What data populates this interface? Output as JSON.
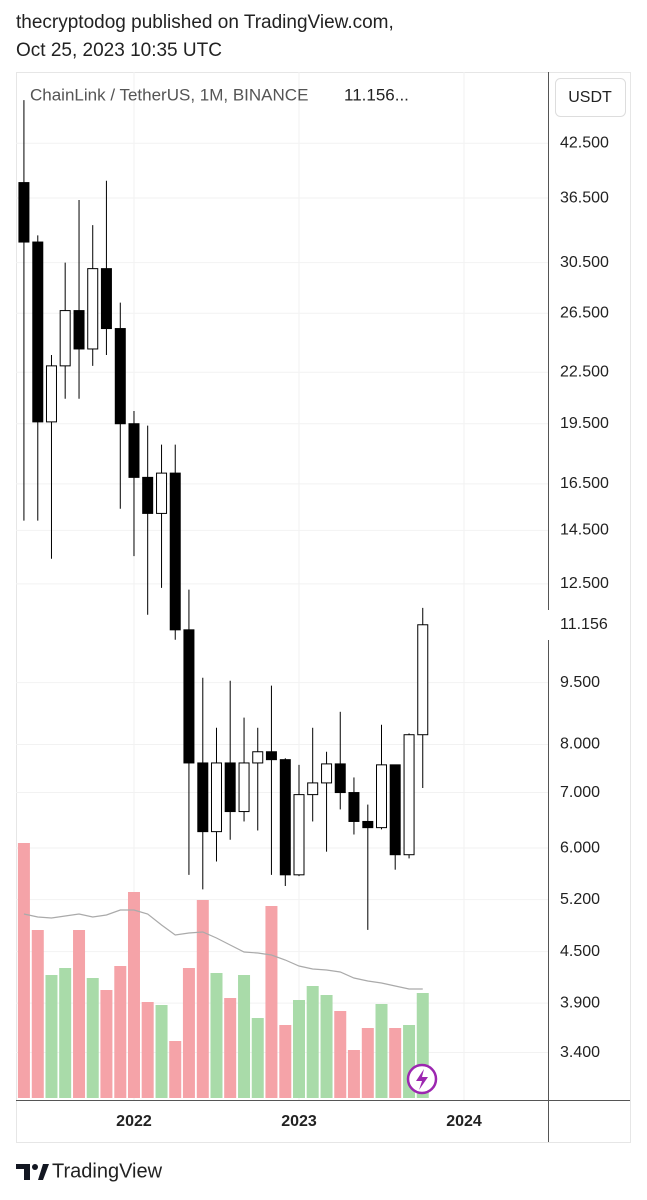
{
  "header": {
    "line1": "thecryptodog published on TradingView.com,",
    "line2": "Oct 25, 2023 10:35 UTC"
  },
  "footer": {
    "brand": "TradingView"
  },
  "chart_data": {
    "type": "candlestick",
    "title": "ChainLink / TetherUS, 1M, BINANCE",
    "legend_price": "11.156...",
    "currency": "USDT",
    "last_price": 11.156,
    "log_scale": true,
    "grid": true,
    "up_color": "#ffffff",
    "down_color": "#000000",
    "volume_up_color": "#a9dba9",
    "volume_down_color": "#f5a3a8",
    "volume_ma_color": "#aaaaaa",
    "x": [
      2021.333,
      2021.417,
      2021.5,
      2021.583,
      2021.667,
      2021.75,
      2021.833,
      2021.917,
      2022,
      2022.083,
      2022.167,
      2022.25,
      2022.333,
      2022.417,
      2022.5,
      2022.583,
      2022.667,
      2022.75,
      2022.833,
      2022.917,
      2023,
      2023.083,
      2023.167,
      2023.25,
      2023.333,
      2023.417,
      2023.5,
      2023.583,
      2023.667,
      2023.75
    ],
    "open": [
      38.1,
      32.3,
      19.6,
      22.9,
      26.7,
      24.0,
      30.0,
      25.4,
      19.5,
      16.8,
      15.2,
      17.0,
      11.0,
      7.6,
      6.28,
      7.6,
      6.64,
      7.6,
      7.84,
      7.67,
      5.57,
      6.96,
      7.19,
      7.58,
      7.0,
      6.46,
      6.35,
      7.56,
      5.89,
      8.22
    ],
    "high": [
      47.9,
      32.9,
      23.6,
      30.5,
      36.3,
      33.85,
      38.3,
      27.3,
      20.2,
      19.4,
      18.4,
      18.4,
      12.3,
      9.63,
      8.38,
      9.55,
      8.62,
      8.38,
      9.42,
      7.7,
      7.56,
      8.38,
      7.84,
      8.76,
      7.3,
      6.77,
      8.45,
      7.56,
      8.25,
      11.69
    ],
    "low": [
      14.9,
      14.9,
      13.4,
      20.9,
      20.9,
      22.9,
      23.6,
      15.4,
      13.5,
      11.47,
      12.36,
      10.7,
      5.57,
      5.35,
      5.78,
      6.14,
      6.46,
      6.3,
      5.57,
      5.4,
      5.55,
      6.46,
      5.94,
      6.68,
      6.23,
      4.78,
      6.32,
      5.65,
      5.83,
      7.09
    ],
    "close": [
      32.3,
      19.6,
      22.9,
      26.7,
      24.0,
      30.0,
      25.4,
      19.5,
      16.8,
      15.2,
      17.0,
      11.0,
      7.6,
      6.28,
      7.6,
      6.64,
      7.6,
      7.84,
      7.67,
      5.57,
      6.96,
      7.19,
      7.58,
      7.0,
      6.46,
      6.35,
      7.56,
      5.89,
      8.22,
      11.156
    ],
    "volume": [
      255,
      168,
      123,
      130,
      168,
      120,
      108,
      132,
      206,
      96,
      93,
      57,
      130,
      198,
      125,
      100,
      123,
      80,
      192,
      73,
      98,
      112,
      103,
      87,
      48,
      70,
      94,
      70,
      73,
      105
    ],
    "volume_ma": [
      184,
      181,
      180,
      182,
      184,
      181,
      183,
      188,
      188,
      184,
      173,
      163,
      165,
      166,
      160,
      153,
      146,
      145,
      143,
      138,
      132,
      129,
      128,
      126,
      120,
      117,
      115,
      112,
      109,
      109
    ],
    "volume_lim": [
      0,
      1026
    ],
    "xlim": [
      2021.285,
      2024.509
    ],
    "xticks": [
      2022,
      2023,
      2024
    ],
    "ylim": [
      2.98,
      51.8
    ],
    "yticks": [
      {
        "value": 42.5,
        "label": "42.500"
      },
      {
        "value": 36.5,
        "label": "36.500"
      },
      {
        "value": 30.5,
        "label": "30.500"
      },
      {
        "value": 26.5,
        "label": "26.500"
      },
      {
        "value": 22.5,
        "label": "22.500"
      },
      {
        "value": 19.5,
        "label": "19.500"
      },
      {
        "value": 16.5,
        "label": "16.500"
      },
      {
        "value": 14.5,
        "label": "14.500"
      },
      {
        "value": 12.5,
        "label": "12.500"
      },
      {
        "value": 9.5,
        "label": "9.500"
      },
      {
        "value": 8,
        "label": "8.000"
      },
      {
        "value": 7,
        "label": "7.000"
      },
      {
        "value": 6,
        "label": "6.000"
      },
      {
        "value": 5.2,
        "label": "5.200"
      },
      {
        "value": 4.5,
        "label": "4.500"
      },
      {
        "value": 3.9,
        "label": "3.900"
      },
      {
        "value": 3.4,
        "label": "3.400"
      }
    ]
  }
}
